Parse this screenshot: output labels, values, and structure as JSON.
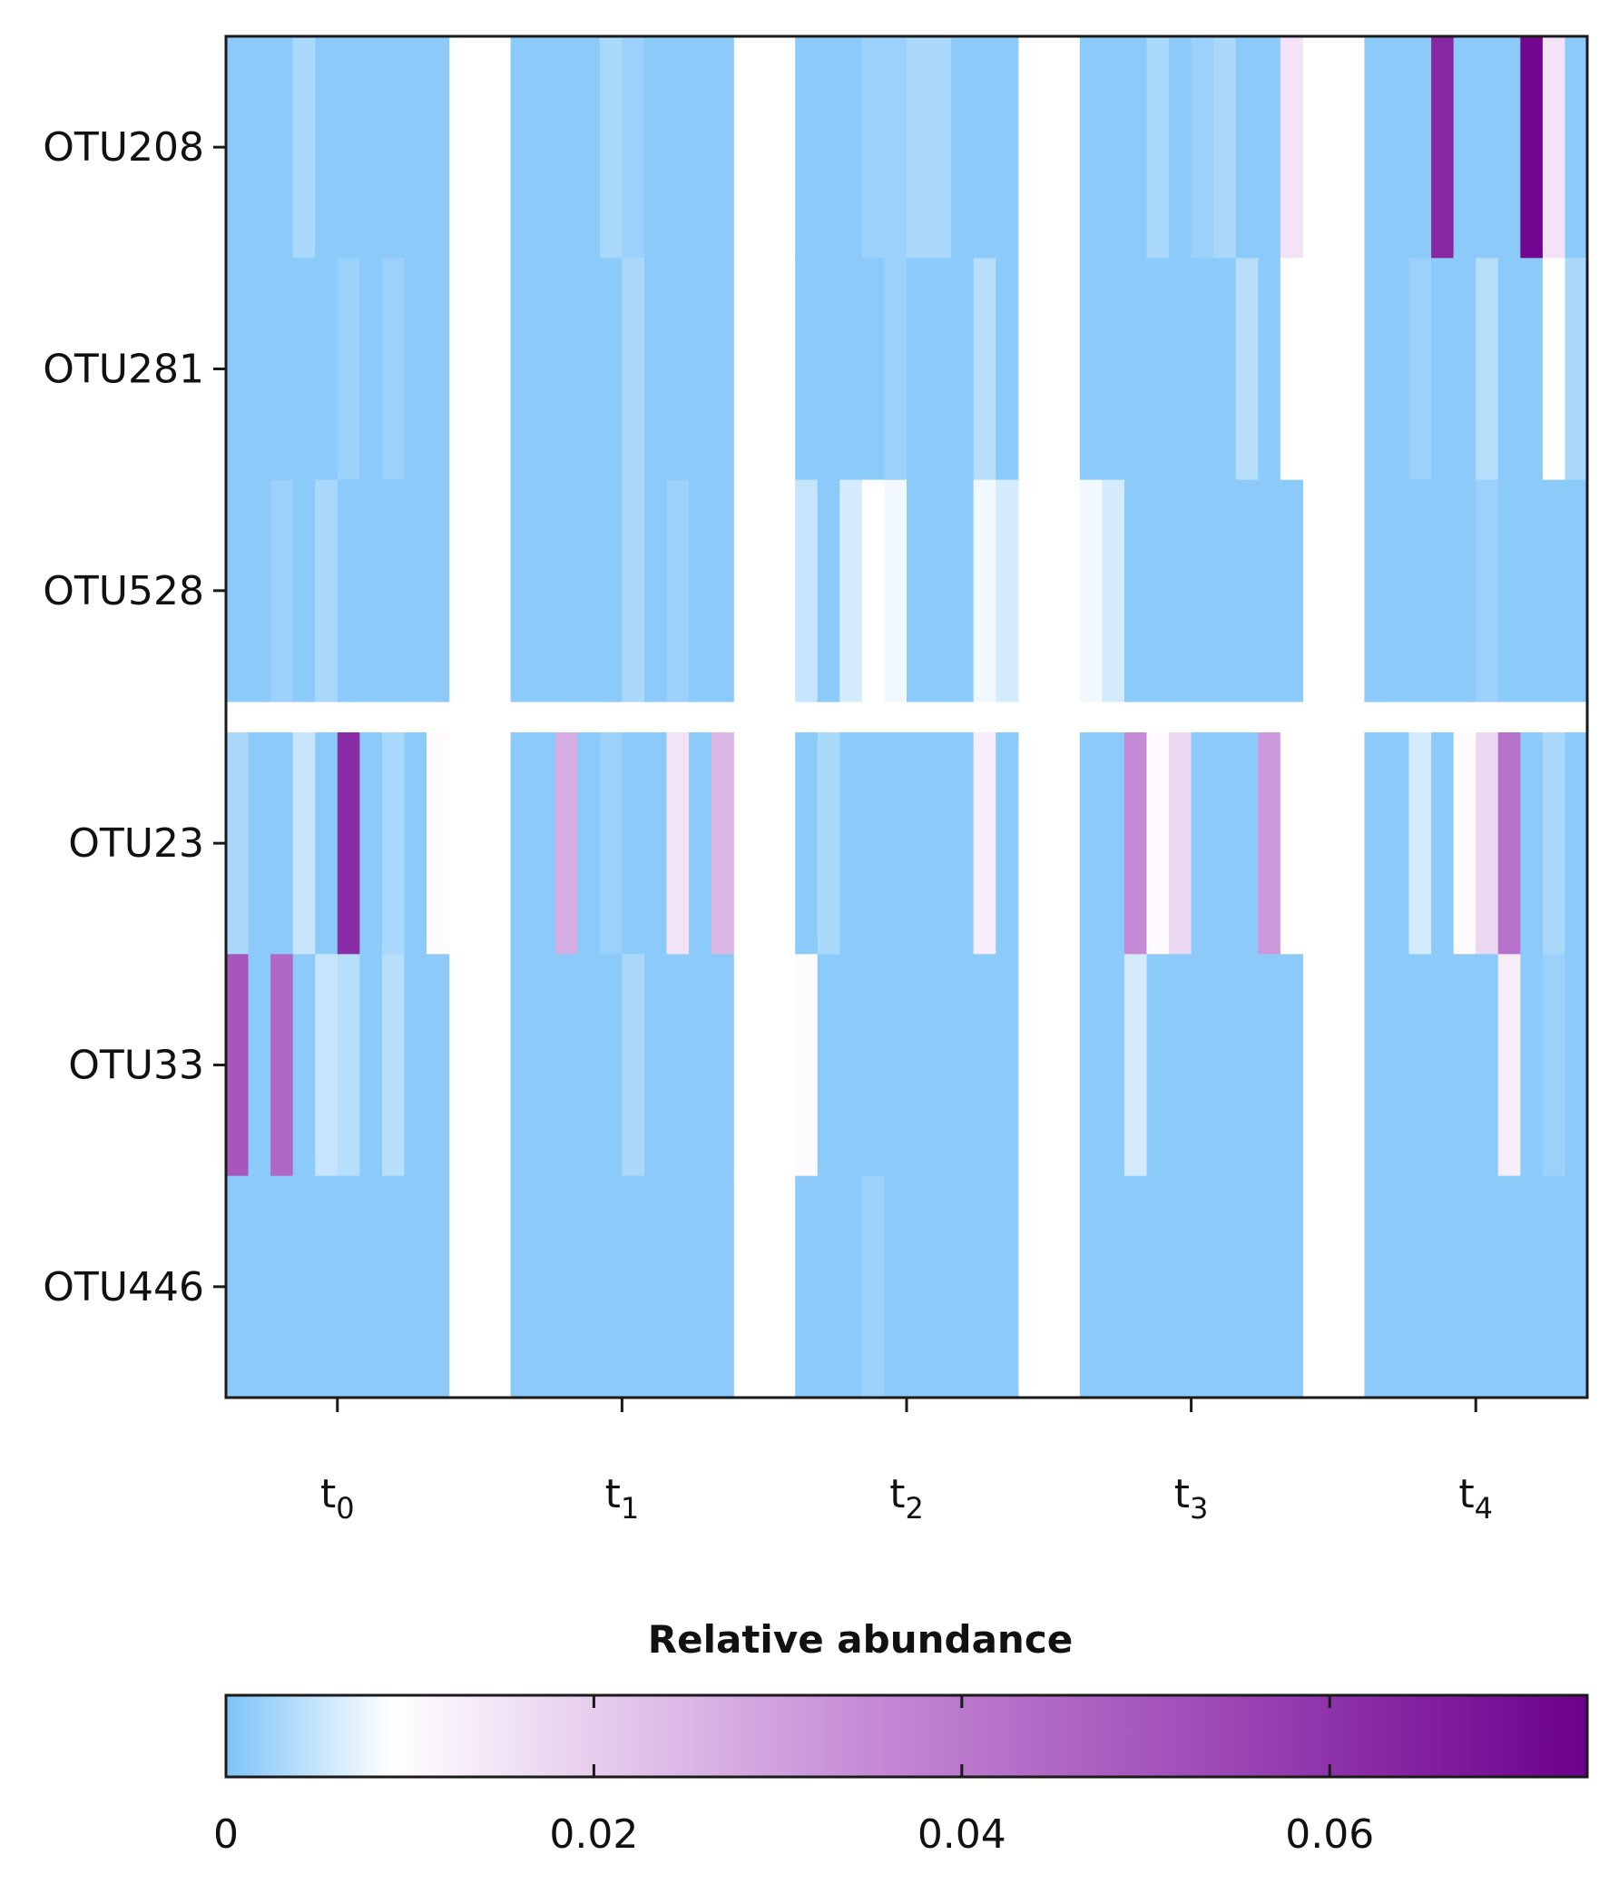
{
  "chart_data": {
    "type": "heatmap",
    "title": "",
    "xlabel": "",
    "ylabel": "",
    "rows": [
      "OTU208",
      "OTU281",
      "OTU528",
      "OTU23",
      "OTU33",
      "OTU446"
    ],
    "row_groups": [
      [
        0,
        1,
        2
      ],
      [
        3,
        4,
        5
      ]
    ],
    "columns": [
      {
        "sub": "0",
        "label": "t0"
      },
      {
        "sub": "1",
        "label": "t1"
      },
      {
        "sub": "2",
        "label": "t2"
      },
      {
        "sub": "3",
        "label": "t3"
      },
      {
        "sub": "4",
        "label": "t4"
      }
    ],
    "x_tick_prefix": "t",
    "samples_per_timepoint": 10,
    "values": [
      [
        [
          0.001,
          0.001,
          0.001,
          0.003,
          0.001,
          0.001,
          0.001,
          0.001,
          0.001,
          0.001
        ],
        [
          0.001,
          0.001,
          0.001,
          0.001,
          0.003,
          0.002,
          0.001,
          0.001,
          0.001,
          0.001
        ],
        [
          0.001,
          0.001,
          0.001,
          0.002,
          0.002,
          0.003,
          0.003,
          0.001,
          0.001,
          0.001
        ],
        [
          0.001,
          0.001,
          0.001,
          0.003,
          0.001,
          0.002,
          0.003,
          0.001,
          0.001,
          0.015
        ],
        [
          0.001,
          0.001,
          0.001,
          0.063,
          0.001,
          0.001,
          0.001,
          0.072,
          0.015,
          0.001
        ]
      ],
      [
        [
          0.001,
          0.001,
          0.001,
          0.001,
          0.001,
          0.002,
          0.001,
          0.002,
          0.001,
          0.001
        ],
        [
          0.001,
          0.001,
          0.001,
          0.001,
          0.001,
          0.003,
          0.001,
          0.001,
          0.001,
          0.001
        ],
        [
          0.001,
          0.001,
          0.001,
          0.001,
          0.002,
          0.001,
          0.001,
          0.001,
          0.004,
          0.001
        ],
        [
          0.001,
          0.001,
          0.001,
          0.001,
          0.001,
          0.001,
          0.001,
          0.004,
          0.001,
          0.009
        ],
        [
          0.001,
          0.001,
          0.002,
          0.001,
          0.001,
          0.004,
          0.001,
          0.001,
          0.009,
          0.003
        ]
      ],
      [
        [
          0.001,
          0.001,
          0.002,
          0.001,
          0.003,
          0.001,
          0.001,
          0.001,
          0.001,
          0.001
        ],
        [
          0.001,
          0.001,
          0.001,
          0.001,
          0.001,
          0.003,
          0.001,
          0.002,
          0.001,
          0.001
        ],
        [
          0.005,
          0.001,
          0.006,
          0.009,
          0.008,
          0.001,
          0.001,
          0.001,
          0.008,
          0.006
        ],
        [
          0.008,
          0.006,
          0.001,
          0.001,
          0.001,
          0.001,
          0.001,
          0.001,
          0.001,
          0.001
        ],
        [
          0.001,
          0.001,
          0.001,
          0.001,
          0.001,
          0.002,
          0.001,
          0.001,
          0.001,
          0.001
        ]
      ],
      [
        [
          0.003,
          0.001,
          0.001,
          0.005,
          0.001,
          0.062,
          0.001,
          0.003,
          0.001,
          0.01
        ],
        [
          0.001,
          0.001,
          0.027,
          0.001,
          0.002,
          0.001,
          0.001,
          0.015,
          0.001,
          0.025
        ],
        [
          0.001,
          0.003,
          0.001,
          0.001,
          0.001,
          0.001,
          0.001,
          0.001,
          0.013,
          0.001
        ],
        [
          0.001,
          0.001,
          0.035,
          0.01,
          0.018,
          0.001,
          0.001,
          0.001,
          0.032,
          0.009
        ],
        [
          0.001,
          0.001,
          0.006,
          0.001,
          0.01,
          0.018,
          0.042,
          0.001,
          0.003,
          0.001
        ]
      ],
      [
        [
          0.05,
          0.001,
          0.045,
          0.001,
          0.005,
          0.004,
          0.001,
          0.004,
          0.001,
          0.001
        ],
        [
          0.001,
          0.001,
          0.001,
          0.001,
          0.001,
          0.003,
          0.001,
          0.001,
          0.001,
          0.001
        ],
        [
          0.01,
          0.001,
          0.001,
          0.001,
          0.001,
          0.001,
          0.001,
          0.001,
          0.001,
          0.001
        ],
        [
          0.001,
          0.001,
          0.006,
          0.001,
          0.001,
          0.001,
          0.001,
          0.001,
          0.001,
          0.001
        ],
        [
          0.001,
          0.001,
          0.001,
          0.001,
          0.001,
          0.001,
          0.013,
          0.001,
          0.002,
          0.001
        ]
      ],
      [
        [
          0.001,
          0.001,
          0.001,
          0.001,
          0.001,
          0.001,
          0.001,
          0.001,
          0.001,
          0.001
        ],
        [
          0.001,
          0.001,
          0.001,
          0.001,
          0.001,
          0.001,
          0.001,
          0.001,
          0.001,
          0.001
        ],
        [
          0.001,
          0.001,
          0.001,
          0.002,
          0.001,
          0.001,
          0.001,
          0.001,
          0.001,
          0.001
        ],
        [
          0.001,
          0.001,
          0.001,
          0.001,
          0.001,
          0.001,
          0.001,
          0.001,
          0.001,
          0.001
        ],
        [
          0.001,
          0.001,
          0.001,
          0.001,
          0.001,
          0.001,
          0.001,
          0.001,
          0.001,
          0.001
        ]
      ]
    ],
    "colorbar": {
      "title": "Relative abundance",
      "min": 0,
      "max": 0.074,
      "ticks": [
        0,
        0.02,
        0.04,
        0.06
      ],
      "tick_labels": [
        "0",
        "0.02",
        "0.04",
        "0.06"
      ],
      "stops": [
        {
          "value": 0,
          "color": "#7ec4f8"
        },
        {
          "value": 0.009,
          "color": "#ffffff"
        },
        {
          "value": 0.035,
          "color": "#c58ad6"
        },
        {
          "value": 0.055,
          "color": "#9b45b4"
        },
        {
          "value": 0.074,
          "color": "#6c008c"
        }
      ]
    },
    "colors": {
      "background": "#ffffff",
      "axis": "#1a1a1a",
      "text": "#111111"
    }
  }
}
